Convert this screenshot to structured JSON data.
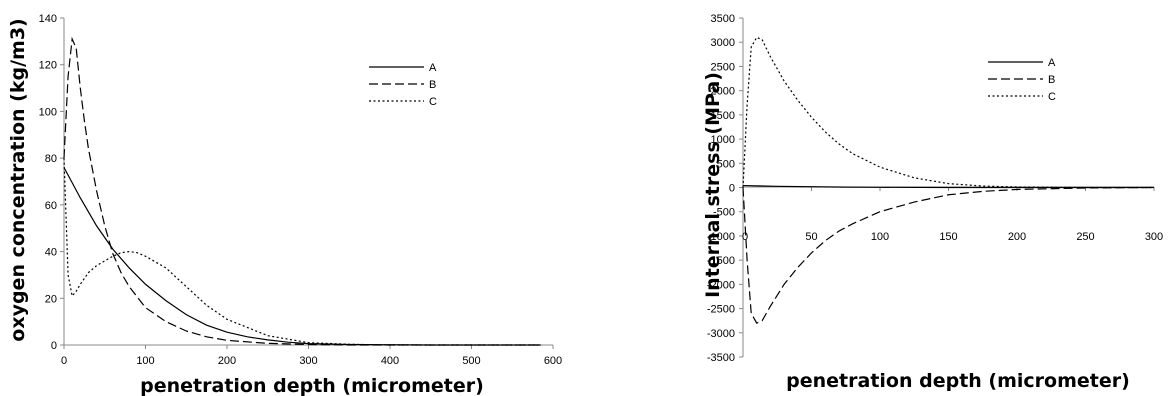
{
  "chart_data": [
    {
      "type": "line",
      "title": "",
      "xlabel": "penetration depth (micrometer)",
      "ylabel": "oxygen concentration (kg/m3)",
      "xlim": [
        0,
        600
      ],
      "ylim": [
        0,
        140
      ],
      "x_ticks": [
        "0",
        "100",
        "200",
        "300",
        "400",
        "500",
        "600"
      ],
      "y_ticks": [
        "0",
        "20",
        "40",
        "60",
        "80",
        "100",
        "120",
        "140"
      ],
      "grid": false,
      "legend": "top-right",
      "series": [
        {
          "name": "A",
          "style": "solid",
          "x": [
            0,
            20,
            40,
            60,
            80,
            100,
            125,
            150,
            175,
            200,
            225,
            250,
            275,
            300,
            350,
            400,
            450,
            500,
            550,
            585
          ],
          "y": [
            76,
            63,
            51,
            41,
            33,
            26,
            19,
            13,
            8.5,
            5.5,
            3.5,
            2.2,
            1.2,
            0.6,
            0.2,
            0.1,
            0,
            0,
            0,
            0
          ]
        },
        {
          "name": "B",
          "style": "dashed",
          "x": [
            0,
            5,
            10,
            15,
            20,
            25,
            30,
            40,
            50,
            60,
            70,
            80,
            100,
            125,
            150,
            175,
            200,
            250,
            300,
            350,
            400,
            500,
            585
          ],
          "y": [
            80,
            115,
            131,
            127,
            110,
            96,
            84,
            66,
            51,
            39,
            31,
            25,
            16,
            10,
            6,
            3.5,
            2,
            0.7,
            0.2,
            0,
            0,
            0,
            0
          ]
        },
        {
          "name": "C",
          "style": "dotted",
          "x": [
            0,
            5,
            10,
            15,
            20,
            30,
            40,
            50,
            60,
            70,
            80,
            90,
            100,
            125,
            150,
            175,
            200,
            250,
            300,
            350,
            400,
            500,
            585
          ],
          "y": [
            80,
            30,
            21,
            23,
            26,
            31,
            34,
            36,
            38,
            39.5,
            40,
            39.5,
            38,
            33,
            25,
            17,
            11,
            4,
            1,
            0.3,
            0,
            0,
            0
          ]
        }
      ]
    },
    {
      "type": "line",
      "title": "",
      "xlabel": "penetration depth (micrometer)",
      "ylabel": "Internal stress (MPa)",
      "xlim": [
        0,
        300
      ],
      "ylim": [
        -3500,
        3500
      ],
      "x_ticks": [
        "0",
        "50",
        "100",
        "150",
        "200",
        "250",
        "300"
      ],
      "y_ticks": [
        "-3500",
        "-3000",
        "-2500",
        "-2000",
        "-1500",
        "-1000",
        "-500",
        "0",
        "500",
        "1000",
        "1500",
        "2000",
        "2500",
        "3000",
        "3500"
      ],
      "grid": false,
      "legend": "top-right",
      "series": [
        {
          "name": "A",
          "style": "solid",
          "x": [
            0,
            25,
            50,
            75,
            100,
            150,
            200,
            250,
            300
          ],
          "y": [
            40,
            25,
            15,
            8,
            4,
            0,
            0,
            0,
            0
          ]
        },
        {
          "name": "B",
          "style": "dashed",
          "x": [
            0,
            3,
            6,
            10,
            14,
            20,
            30,
            40,
            50,
            60,
            70,
            80,
            100,
            125,
            150,
            175,
            200,
            250,
            300
          ],
          "y": [
            0,
            -1500,
            -2600,
            -2800,
            -2750,
            -2450,
            -2000,
            -1650,
            -1350,
            -1100,
            -900,
            -750,
            -500,
            -300,
            -150,
            -80,
            -40,
            -10,
            0
          ]
        },
        {
          "name": "C",
          "style": "dotted",
          "x": [
            0,
            3,
            6,
            10,
            14,
            20,
            30,
            40,
            50,
            60,
            70,
            80,
            100,
            125,
            150,
            175,
            200,
            250,
            300
          ],
          "y": [
            0,
            1700,
            2900,
            3100,
            3050,
            2700,
            2200,
            1800,
            1450,
            1150,
            900,
            700,
            420,
            200,
            80,
            30,
            10,
            0,
            0
          ]
        }
      ]
    }
  ]
}
